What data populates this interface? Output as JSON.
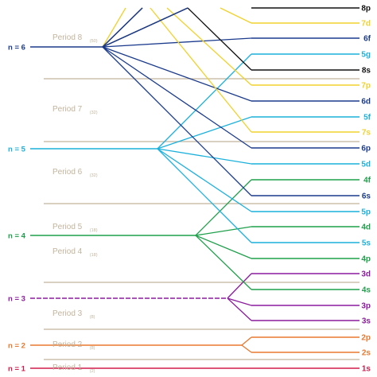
{
  "colors": {
    "n1": "#d01c4b",
    "n2": "#e8782f",
    "n3": "#8b1a9e",
    "n4": "#1ea04a",
    "n5": "#1cb1dc",
    "n6": "#1a3a8c",
    "n7": "#f0d22c",
    "n8": "#111111",
    "period_line": "#c2b49c"
  },
  "shells": [
    {
      "label": "n = 1",
      "color_key": "n1"
    },
    {
      "label": "n = 2",
      "color_key": "n2"
    },
    {
      "label": "n = 3",
      "color_key": "n3"
    },
    {
      "label": "n = 4",
      "color_key": "n4"
    },
    {
      "label": "n = 5",
      "color_key": "n5"
    },
    {
      "label": "n = 6",
      "color_key": "n6"
    }
  ],
  "periods": [
    {
      "label": "Period 1",
      "count": "(2)"
    },
    {
      "label": "Period 2",
      "count": "(8)"
    },
    {
      "label": "Period 3",
      "count": "(8)"
    },
    {
      "label": "Period 4",
      "count": "(18)"
    },
    {
      "label": "Period 5",
      "count": "(18)"
    },
    {
      "label": "Period 6",
      "count": "(32)"
    },
    {
      "label": "Period 7",
      "count": "(32)"
    },
    {
      "label": "Period 8",
      "count": "(50)"
    }
  ],
  "orbitals": [
    {
      "label": "1s",
      "color_key": "n1"
    },
    {
      "label": "2s",
      "color_key": "n2"
    },
    {
      "label": "2p",
      "color_key": "n2"
    },
    {
      "label": "3s",
      "color_key": "n3"
    },
    {
      "label": "3p",
      "color_key": "n3"
    },
    {
      "label": "4s",
      "color_key": "n4"
    },
    {
      "label": "3d",
      "color_key": "n3"
    },
    {
      "label": "4p",
      "color_key": "n4"
    },
    {
      "label": "5s",
      "color_key": "n5"
    },
    {
      "label": "4d",
      "color_key": "n4"
    },
    {
      "label": "5p",
      "color_key": "n5"
    },
    {
      "label": "6s",
      "color_key": "n6"
    },
    {
      "label": "4f",
      "color_key": "n4"
    },
    {
      "label": "5d",
      "color_key": "n5"
    },
    {
      "label": "6p",
      "color_key": "n6"
    },
    {
      "label": "7s",
      "color_key": "n7"
    },
    {
      "label": "5f",
      "color_key": "n5"
    },
    {
      "label": "6d",
      "color_key": "n6"
    },
    {
      "label": "7p",
      "color_key": "n7"
    },
    {
      "label": "8s",
      "color_key": "n8"
    },
    {
      "label": "5g",
      "color_key": "n5"
    },
    {
      "label": "6f",
      "color_key": "n6"
    },
    {
      "label": "7d",
      "color_key": "n7"
    },
    {
      "label": "8p",
      "color_key": "n8"
    }
  ]
}
